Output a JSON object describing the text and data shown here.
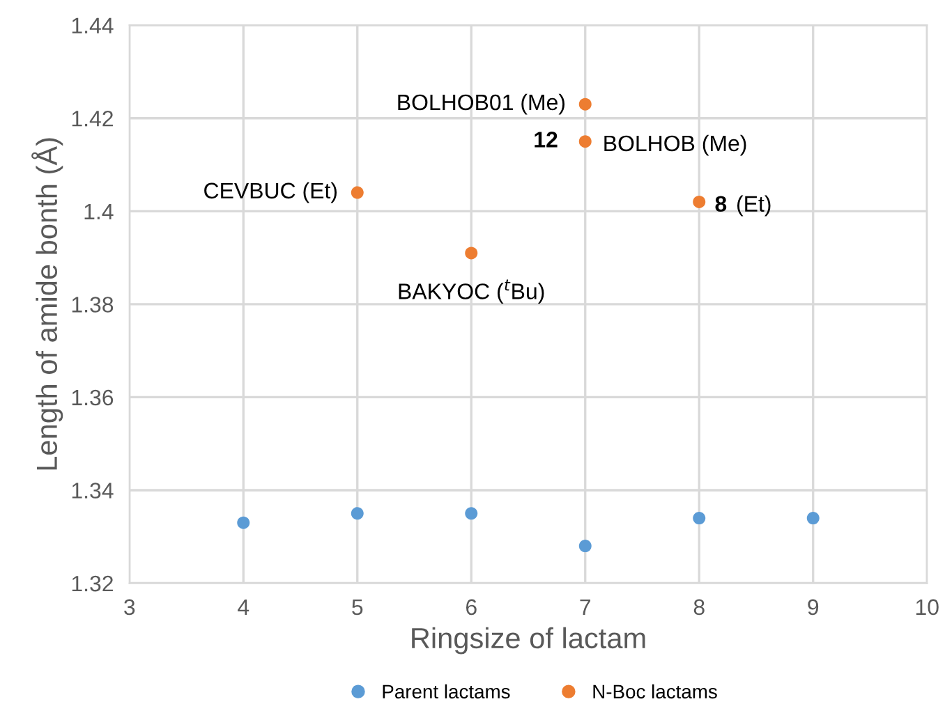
{
  "chart_data": {
    "type": "scatter",
    "xlabel": "Ringsize of lactam",
    "ylabel": "Length of amide bonth (Å)",
    "xlim": [
      3,
      10
    ],
    "xticks": [
      3,
      4,
      5,
      6,
      7,
      8,
      9,
      10
    ],
    "ylim": [
      1.32,
      1.44
    ],
    "yticks": [
      1.32,
      1.34,
      1.36,
      1.38,
      {
        "value": 1.4,
        "label": "1.4"
      },
      1.42,
      1.44
    ],
    "grid": true,
    "legend": "bottom",
    "marker": "circle",
    "series": [
      {
        "name": "Parent lactams",
        "color": "#5b9bd5",
        "x": [
          4,
          5,
          6,
          7,
          8,
          9
        ],
        "values": [
          1.333,
          1.335,
          1.335,
          1.328,
          1.334,
          1.334
        ]
      },
      {
        "name": "N-Boc lactams",
        "color": "#ed7d31",
        "x": [
          5,
          6,
          7,
          7,
          8
        ],
        "values": [
          1.404,
          1.391,
          1.423,
          1.415,
          1.402
        ]
      }
    ],
    "annotations": [
      {
        "text": "BOLHOB01 (Me)",
        "x": 7,
        "y": 1.423
      },
      {
        "text": "12",
        "x": 7,
        "y": 1.415
      },
      {
        "text": "BOLHOB (Me)",
        "x": 7,
        "y": 1.415
      },
      {
        "text": "CEVBUC (Et)",
        "x": 5,
        "y": 1.404
      },
      {
        "text": "BAKYOC ($^{t}$Bu)",
        "x": 6,
        "y": 1.391
      },
      {
        "text": "8",
        "x": 8,
        "y": 1.402
      },
      {
        "text": "(Et)",
        "x": 8,
        "y": 1.402
      }
    ]
  }
}
